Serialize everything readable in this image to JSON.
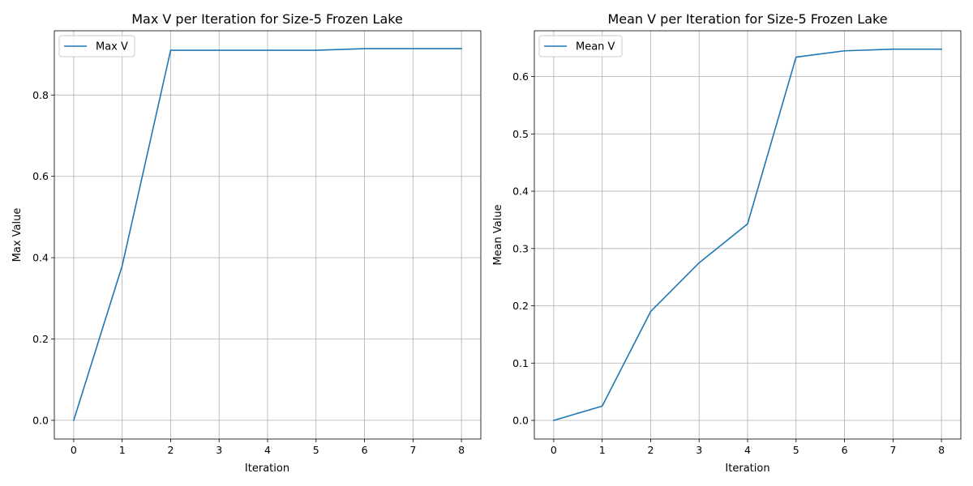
{
  "chart_data": [
    {
      "type": "line",
      "title": "Max V per Iteration for Size-5 Frozen Lake",
      "xlabel": "Iteration",
      "ylabel": "Max Value",
      "x": [
        0,
        1,
        2,
        3,
        4,
        5,
        6,
        7,
        8
      ],
      "xticks": [
        0,
        1,
        2,
        3,
        4,
        5,
        6,
        7,
        8
      ],
      "yticks": [
        0.0,
        0.2,
        0.4,
        0.6,
        0.8
      ],
      "ytick_labels": [
        "0.0",
        "0.2",
        "0.4",
        "0.6",
        "0.8"
      ],
      "xlim": [
        -0.4,
        8.4
      ],
      "ylim": [
        -0.046,
        0.958
      ],
      "grid": true,
      "legend": "upper-left",
      "series": [
        {
          "name": "Max V",
          "color": "#1f77b4",
          "values": [
            0.0,
            0.38,
            0.91,
            0.91,
            0.91,
            0.91,
            0.914,
            0.914,
            0.914
          ]
        }
      ]
    },
    {
      "type": "line",
      "title": "Mean V per Iteration for Size-5 Frozen Lake",
      "xlabel": "Iteration",
      "ylabel": "Mean Value",
      "x": [
        0,
        1,
        2,
        3,
        4,
        5,
        6,
        7,
        8
      ],
      "xticks": [
        0,
        1,
        2,
        3,
        4,
        5,
        6,
        7,
        8
      ],
      "yticks": [
        0.0,
        0.1,
        0.2,
        0.3,
        0.4,
        0.5,
        0.6
      ],
      "ytick_labels": [
        "0.0",
        "0.1",
        "0.2",
        "0.3",
        "0.4",
        "0.5",
        "0.6"
      ],
      "xlim": [
        -0.4,
        8.4
      ],
      "ylim": [
        -0.0325,
        0.68
      ],
      "grid": true,
      "legend": "upper-left",
      "series": [
        {
          "name": "Mean V",
          "color": "#1f77b4",
          "values": [
            0.0,
            0.025,
            0.19,
            0.275,
            0.343,
            0.634,
            0.645,
            0.648,
            0.648
          ]
        }
      ]
    }
  ]
}
